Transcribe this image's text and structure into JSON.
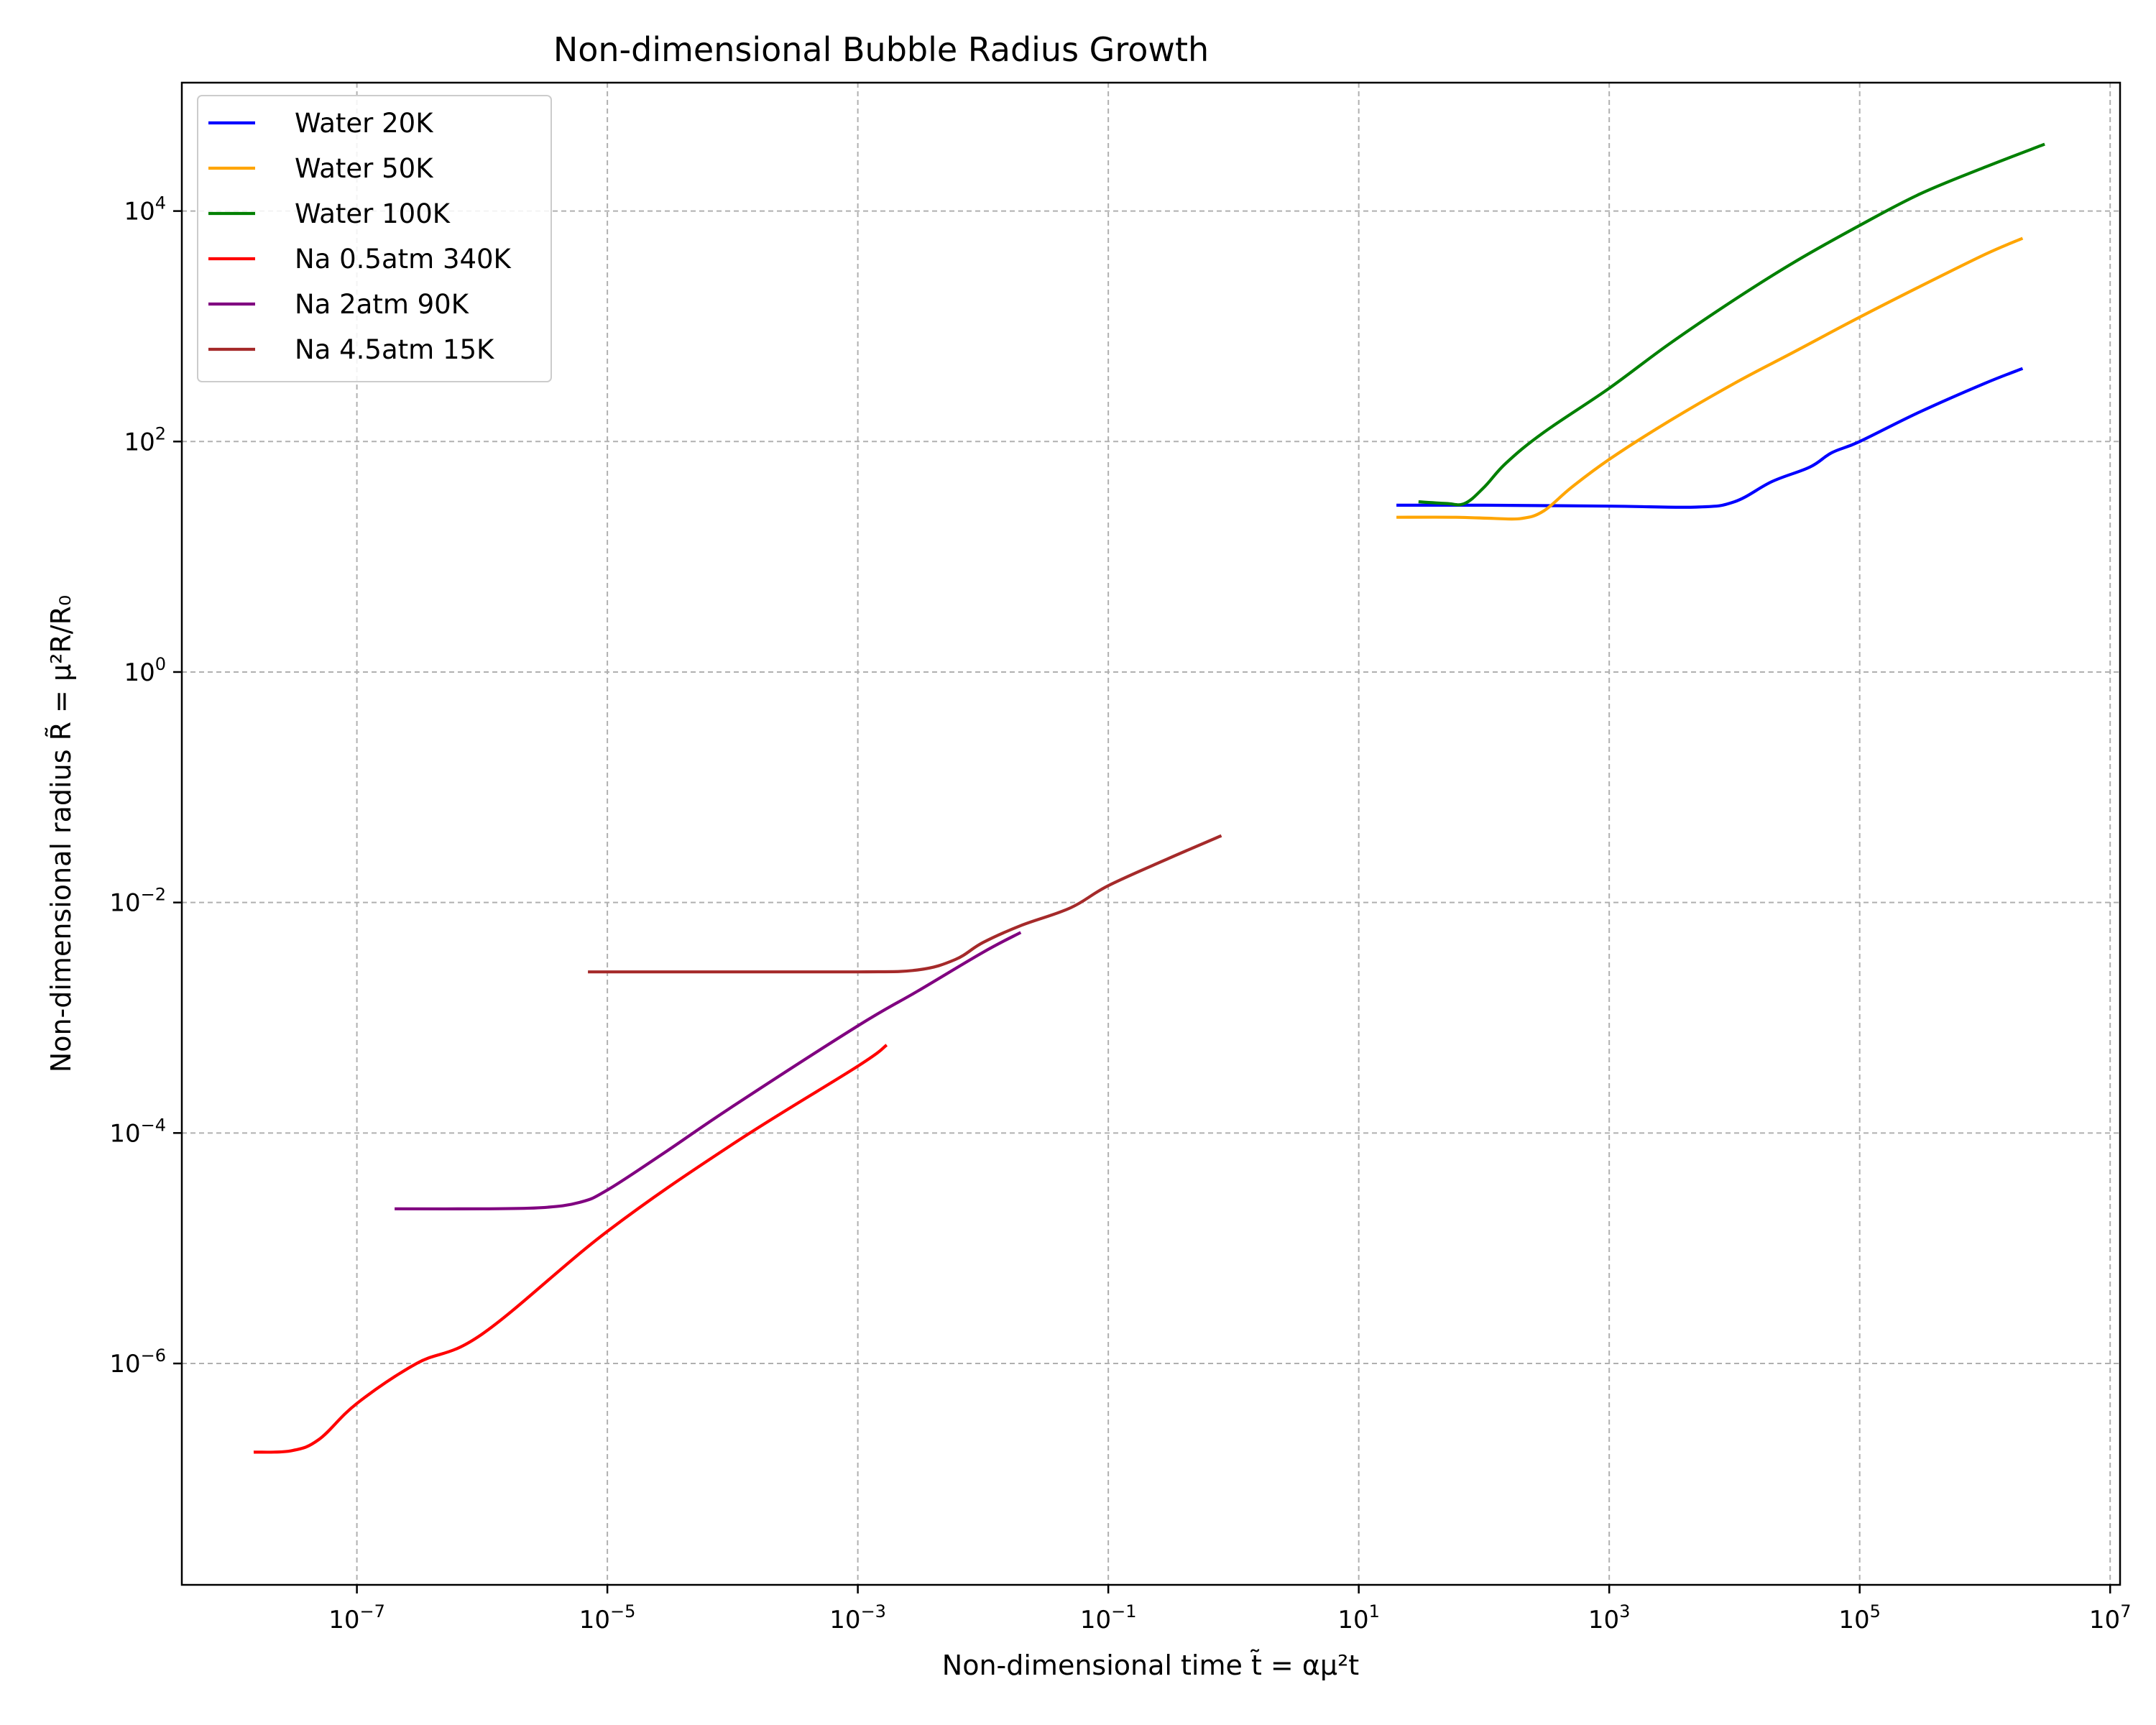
{
  "chart_data": {
    "type": "line",
    "title": "Non-dimensional Bubble Radius Growth",
    "xlabel": "Non-dimensional time t̃ = αμ²t",
    "ylabel": "Non-dimensional radius R̃ = μ²R/R₀",
    "x_scale": "log",
    "y_scale": "log",
    "xlim": [
      4e-09,
      12000000.0
    ],
    "ylim": [
      1.2e-08,
      130000.0
    ],
    "x_ticks": [
      {
        "value": 1e-07,
        "base": "10",
        "exp": "−7"
      },
      {
        "value": 1e-05,
        "base": "10",
        "exp": "−5"
      },
      {
        "value": 0.001,
        "base": "10",
        "exp": "−3"
      },
      {
        "value": 0.1,
        "base": "10",
        "exp": "−1"
      },
      {
        "value": 10.0,
        "base": "10",
        "exp": "1"
      },
      {
        "value": 1000.0,
        "base": "10",
        "exp": "3"
      },
      {
        "value": 100000.0,
        "base": "10",
        "exp": "5"
      },
      {
        "value": 10000000.0,
        "base": "10",
        "exp": "7"
      }
    ],
    "y_ticks": [
      {
        "value": 1e-06,
        "base": "10",
        "exp": "−6"
      },
      {
        "value": 0.0001,
        "base": "10",
        "exp": "−4"
      },
      {
        "value": 0.01,
        "base": "10",
        "exp": "−2"
      },
      {
        "value": 1.0,
        "base": "10",
        "exp": "0"
      },
      {
        "value": 100.0,
        "base": "10",
        "exp": "2"
      },
      {
        "value": 10000.0,
        "base": "10",
        "exp": "4"
      }
    ],
    "grid": true,
    "legend_position": "upper-left",
    "series": [
      {
        "name": "Water 20K",
        "color": "#0000ff",
        "x": [
          20,
          100,
          1000,
          5000,
          10000,
          20000,
          40000,
          60000,
          100000,
          300000,
          1000000,
          2000000
        ],
        "y": [
          28,
          28,
          27.5,
          27,
          30,
          45,
          60,
          80,
          100,
          180,
          320,
          430
        ]
      },
      {
        "name": "Water 50K",
        "color": "#ffa500",
        "x": [
          20,
          60,
          120,
          200,
          300,
          500,
          1000,
          3000,
          10000,
          30000,
          100000,
          300000,
          1000000,
          2000000
        ],
        "y": [
          22,
          22,
          21.5,
          21.5,
          25,
          40,
          70,
          150,
          320,
          600,
          1200,
          2200,
          4200,
          5800
        ]
      },
      {
        "name": "Water 100K",
        "color": "#008000",
        "x": [
          30,
          50,
          70,
          100,
          150,
          300,
          1000,
          3000,
          10000,
          30000,
          100000,
          300000,
          1000000,
          3000000
        ],
        "y": [
          30,
          29,
          29,
          40,
          65,
          120,
          290,
          700,
          1700,
          3600,
          7500,
          14000,
          24000,
          38000
        ]
      },
      {
        "name": "Na 0.5atm 340K",
        "color": "#ff0000",
        "x": [
          1.5e-08,
          3e-08,
          5e-08,
          1e-07,
          3e-07,
          1e-06,
          1e-05,
          0.0001,
          0.001,
          0.0017
        ],
        "y": [
          1.7e-07,
          1.75e-07,
          2.2e-07,
          4.5e-07,
          1e-06,
          1.8e-06,
          1.4e-05,
          8e-05,
          0.00038,
          0.00058
        ]
      },
      {
        "name": "Na 2atm 90K",
        "color": "#800080",
        "x": [
          2e-07,
          1e-06,
          3e-06,
          6e-06,
          1e-05,
          3e-05,
          0.0001,
          0.001,
          0.003,
          0.01,
          0.02
        ],
        "y": [
          2.2e-05,
          2.2e-05,
          2.25e-05,
          2.5e-05,
          3.2e-05,
          7e-05,
          0.00017,
          0.00085,
          0.0017,
          0.0037,
          0.0055
        ]
      },
      {
        "name": "Na 4.5atm 15K",
        "color": "#a52a2a",
        "x": [
          7e-06,
          0.0001,
          0.001,
          0.003,
          0.006,
          0.01,
          0.02,
          0.05,
          0.1,
          0.3,
          0.8
        ],
        "y": [
          0.0025,
          0.0025,
          0.0025,
          0.0026,
          0.0032,
          0.0045,
          0.0063,
          0.009,
          0.014,
          0.024,
          0.038
        ]
      }
    ]
  }
}
